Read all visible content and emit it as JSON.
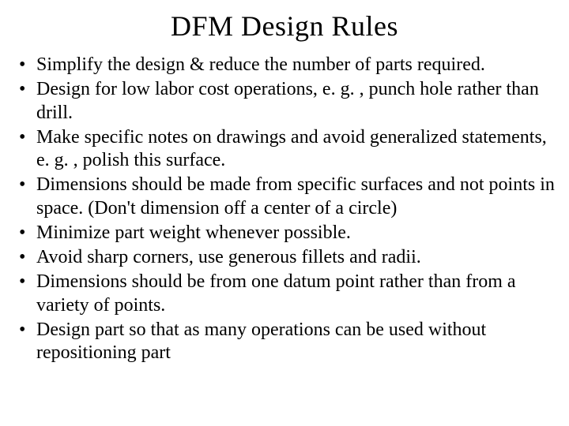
{
  "slide": {
    "title": "DFM Design Rules",
    "bullets": [
      "Simplify the design & reduce the number of parts required.",
      "Design for low labor cost operations, e. g. , punch hole rather than drill.",
      "Make specific notes on drawings and avoid generalized statements, e. g. , polish this surface.",
      "Dimensions should be made from specific surfaces and not points in space. (Don't dimension off a center of a circle)",
      "Minimize part weight whenever possible.",
      "Avoid sharp corners, use generous fillets and radii.",
      "Dimensions should be from one datum point rather than from a variety of points.",
      "Design part so that as many operations can be used without repositioning part"
    ],
    "colors": {
      "background": "#ffffff",
      "text": "#000000"
    },
    "typography": {
      "title_fontsize": 36,
      "bullet_fontsize": 24,
      "font_family": "Times New Roman"
    }
  }
}
